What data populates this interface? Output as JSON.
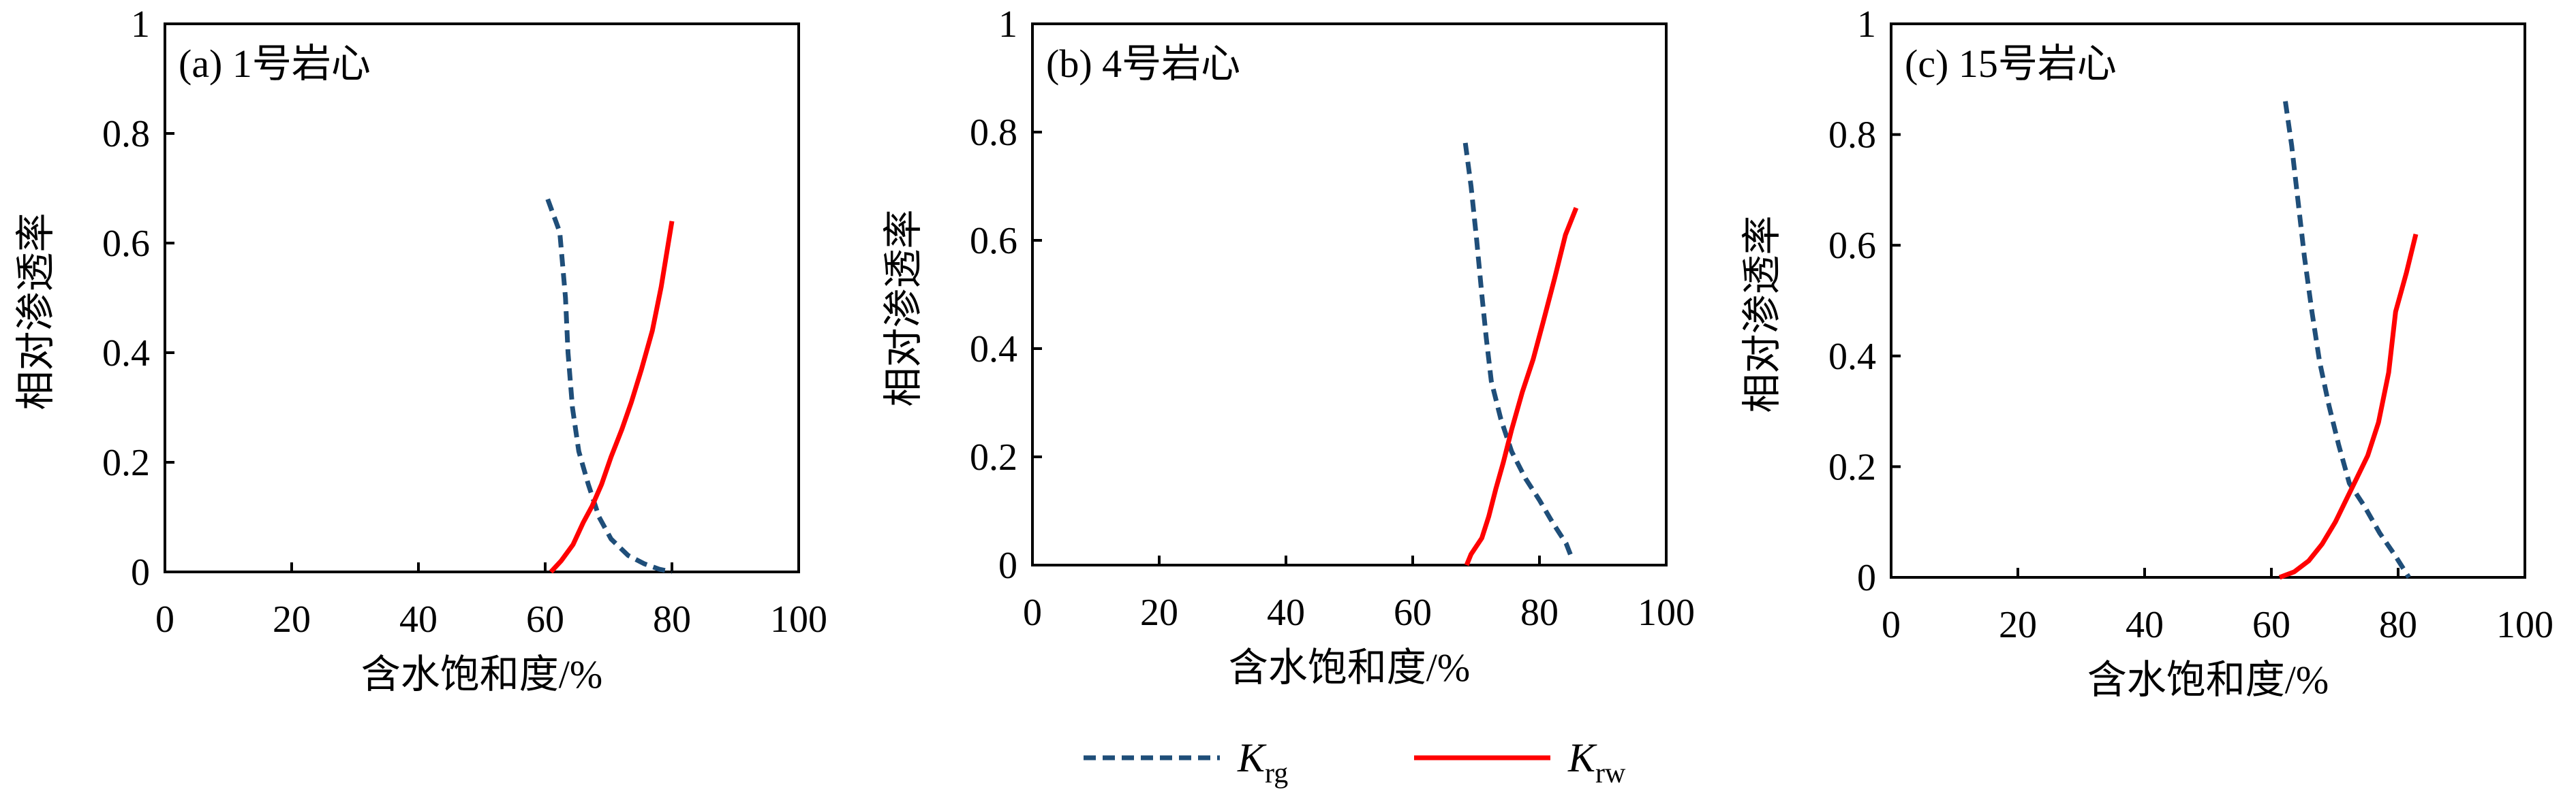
{
  "colors": {
    "krg": "#1f4e79",
    "krw": "#ff0000",
    "axis": "#000000"
  },
  "legend": {
    "items": [
      {
        "series": "Krg",
        "main": "K",
        "sub": "rg",
        "style": "dashed"
      },
      {
        "series": "Krw",
        "main": "K",
        "sub": "rw",
        "style": "solid"
      }
    ]
  },
  "chart_data": [
    {
      "type": "line",
      "panel_label": "(a) 1号岩心",
      "xlabel": "含水饱和度/%",
      "ylabel": "相对渗透率",
      "xlim": [
        0,
        100
      ],
      "ylim": [
        0,
        1
      ],
      "xticks": [
        0,
        20,
        40,
        60,
        80,
        100
      ],
      "yticks": [
        0,
        0.2,
        0.4,
        0.6,
        0.8,
        1
      ],
      "ytick_labels": [
        "0",
        "0.2",
        "0.4",
        "0.6",
        "0.8",
        "1"
      ],
      "series": [
        {
          "name": "Krg",
          "x": [
            60.4,
            62.3,
            63.2,
            63.6,
            64.3,
            65.3,
            66.8,
            68.5,
            70.4,
            73.1,
            75.6,
            78.0,
            80.0
          ],
          "y": [
            0.68,
            0.62,
            0.5,
            0.4,
            0.3,
            0.22,
            0.16,
            0.1,
            0.06,
            0.03,
            0.015,
            0.005,
            0.0
          ]
        },
        {
          "name": "Krw",
          "x": [
            60.9,
            62.5,
            64.4,
            66.0,
            67.4,
            68.9,
            70.4,
            72.1,
            73.6,
            75.2,
            76.9,
            78.3,
            80.0
          ],
          "y": [
            0.0,
            0.02,
            0.05,
            0.09,
            0.12,
            0.16,
            0.21,
            0.26,
            0.31,
            0.37,
            0.44,
            0.52,
            0.64
          ]
        }
      ]
    },
    {
      "type": "line",
      "panel_label": "(b) 4号岩心",
      "xlabel": "含水饱和度/%",
      "ylabel": "相对渗透率",
      "xlim": [
        0,
        100
      ],
      "ylim": [
        0,
        1
      ],
      "xticks": [
        0,
        20,
        40,
        60,
        80,
        100
      ],
      "yticks": [
        0,
        0.2,
        0.4,
        0.6,
        0.8,
        1
      ],
      "ytick_labels": [
        "0",
        "0.2",
        "0.4",
        "0.6",
        "0.8",
        "1"
      ],
      "series": [
        {
          "name": "Krg",
          "x": [
            68.3,
            69.2,
            70.1,
            70.9,
            71.6,
            72.4,
            73.9,
            75.6,
            77.8,
            80.0,
            82.0,
            84.2,
            85.2
          ],
          "y": [
            0.78,
            0.7,
            0.6,
            0.5,
            0.42,
            0.34,
            0.27,
            0.21,
            0.16,
            0.12,
            0.08,
            0.04,
            0.01
          ]
        },
        {
          "name": "Krw",
          "x": [
            68.5,
            69.2,
            70.9,
            72.0,
            73.1,
            74.3,
            75.6,
            77.3,
            79.0,
            80.6,
            82.4,
            84.1,
            85.8
          ],
          "y": [
            0.0,
            0.02,
            0.05,
            0.09,
            0.14,
            0.19,
            0.25,
            0.32,
            0.38,
            0.45,
            0.53,
            0.61,
            0.66
          ]
        }
      ]
    },
    {
      "type": "line",
      "panel_label": "(c) 15号岩心",
      "xlabel": "含水饱和度/%",
      "ylabel": "相对渗透率",
      "xlim": [
        0,
        100
      ],
      "ylim": [
        0,
        1
      ],
      "xticks": [
        0,
        20,
        40,
        60,
        80,
        100
      ],
      "yticks": [
        0,
        0.2,
        0.4,
        0.6,
        0.8,
        1
      ],
      "ytick_labels": [
        "0",
        "0.2",
        "0.4",
        "0.6",
        "0.8",
        "1"
      ],
      "series": [
        {
          "name": "Krg",
          "x": [
            62.2,
            63.2,
            64.2,
            65.2,
            66.4,
            67.6,
            69.1,
            70.6,
            72.3,
            74.6,
            77.1,
            79.5,
            81.7
          ],
          "y": [
            0.86,
            0.78,
            0.68,
            0.58,
            0.48,
            0.39,
            0.31,
            0.24,
            0.17,
            0.13,
            0.08,
            0.04,
            0.0
          ]
        },
        {
          "name": "Krw",
          "x": [
            61.3,
            63.6,
            65.9,
            68.0,
            70.1,
            71.8,
            73.5,
            75.2,
            76.9,
            78.5,
            79.6,
            81.3,
            82.8
          ],
          "y": [
            0.0,
            0.01,
            0.03,
            0.06,
            0.1,
            0.14,
            0.18,
            0.22,
            0.28,
            0.37,
            0.48,
            0.55,
            0.62
          ]
        }
      ]
    }
  ]
}
